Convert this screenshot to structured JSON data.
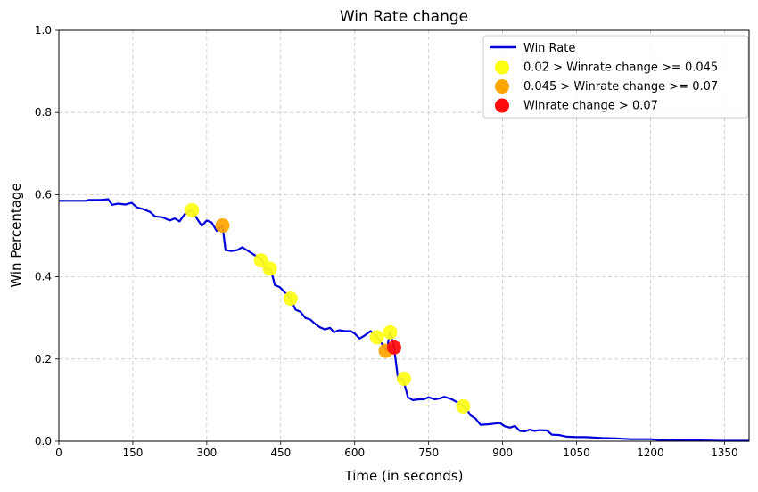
{
  "chart_data": {
    "type": "line",
    "title": "Win Rate change",
    "xlabel": "Time (in seconds)",
    "ylabel": "Win Percentage",
    "xlim": [
      0,
      1400
    ],
    "ylim": [
      0,
      1.0
    ],
    "grid": true,
    "legend_position": "top-right",
    "x_ticks": [
      0,
      150,
      300,
      450,
      600,
      750,
      900,
      1050,
      1200,
      1350
    ],
    "y_ticks": [
      0.0,
      0.2,
      0.4,
      0.6,
      0.8,
      1.0
    ],
    "y_tick_labels": [
      "0.0",
      "0.2",
      "0.4",
      "0.6",
      "0.8",
      "1.0"
    ],
    "series": [
      {
        "name": "Win Rate",
        "color": "#0000dd",
        "points": [
          [
            0,
            0.585
          ],
          [
            20,
            0.585
          ],
          [
            40,
            0.585
          ],
          [
            55,
            0.585
          ],
          [
            60,
            0.587
          ],
          [
            70,
            0.587
          ],
          [
            85,
            0.587
          ],
          [
            100,
            0.589
          ],
          [
            108,
            0.575
          ],
          [
            120,
            0.578
          ],
          [
            135,
            0.576
          ],
          [
            148,
            0.58
          ],
          [
            158,
            0.569
          ],
          [
            170,
            0.565
          ],
          [
            185,
            0.558
          ],
          [
            195,
            0.547
          ],
          [
            210,
            0.545
          ],
          [
            225,
            0.537
          ],
          [
            235,
            0.542
          ],
          [
            245,
            0.535
          ],
          [
            255,
            0.552
          ],
          [
            270,
            0.563
          ],
          [
            280,
            0.542
          ],
          [
            290,
            0.524
          ],
          [
            300,
            0.537
          ],
          [
            310,
            0.532
          ],
          [
            320,
            0.512
          ],
          [
            332,
            0.525
          ],
          [
            338,
            0.465
          ],
          [
            350,
            0.463
          ],
          [
            362,
            0.465
          ],
          [
            372,
            0.472
          ],
          [
            385,
            0.462
          ],
          [
            398,
            0.452
          ],
          [
            410,
            0.443
          ],
          [
            420,
            0.418
          ],
          [
            430,
            0.418
          ],
          [
            438,
            0.38
          ],
          [
            448,
            0.375
          ],
          [
            460,
            0.36
          ],
          [
            470,
            0.347
          ],
          [
            480,
            0.32
          ],
          [
            490,
            0.315
          ],
          [
            500,
            0.3
          ],
          [
            510,
            0.296
          ],
          [
            520,
            0.285
          ],
          [
            530,
            0.277
          ],
          [
            540,
            0.272
          ],
          [
            550,
            0.276
          ],
          [
            558,
            0.265
          ],
          [
            568,
            0.27
          ],
          [
            580,
            0.268
          ],
          [
            592,
            0.268
          ],
          [
            600,
            0.262
          ],
          [
            610,
            0.25
          ],
          [
            620,
            0.257
          ],
          [
            632,
            0.268
          ],
          [
            645,
            0.254
          ],
          [
            655,
            0.238
          ],
          [
            665,
            0.22
          ],
          [
            672,
            0.268
          ],
          [
            680,
            0.228
          ],
          [
            688,
            0.15
          ],
          [
            698,
            0.152
          ],
          [
            708,
            0.107
          ],
          [
            718,
            0.1
          ],
          [
            730,
            0.102
          ],
          [
            740,
            0.102
          ],
          [
            750,
            0.107
          ],
          [
            762,
            0.102
          ],
          [
            772,
            0.104
          ],
          [
            782,
            0.108
          ],
          [
            795,
            0.103
          ],
          [
            805,
            0.097
          ],
          [
            815,
            0.09
          ],
          [
            825,
            0.082
          ],
          [
            835,
            0.063
          ],
          [
            845,
            0.055
          ],
          [
            855,
            0.04
          ],
          [
            870,
            0.041
          ],
          [
            885,
            0.043
          ],
          [
            895,
            0.044
          ],
          [
            905,
            0.036
          ],
          [
            915,
            0.033
          ],
          [
            925,
            0.037
          ],
          [
            935,
            0.025
          ],
          [
            945,
            0.024
          ],
          [
            955,
            0.028
          ],
          [
            965,
            0.025
          ],
          [
            975,
            0.027
          ],
          [
            990,
            0.026
          ],
          [
            1000,
            0.016
          ],
          [
            1015,
            0.015
          ],
          [
            1030,
            0.011
          ],
          [
            1050,
            0.01
          ],
          [
            1070,
            0.01
          ],
          [
            1100,
            0.008
          ],
          [
            1130,
            0.007
          ],
          [
            1160,
            0.005
          ],
          [
            1200,
            0.005
          ],
          [
            1220,
            0.003
          ],
          [
            1260,
            0.002
          ],
          [
            1300,
            0.002
          ],
          [
            1340,
            0.001
          ],
          [
            1380,
            0.001
          ],
          [
            1400,
            0.001
          ]
        ]
      },
      {
        "name": " 0.02 > Winrate change >= 0.045",
        "color": "#ffff14",
        "points": [
          [
            270,
            0.562
          ],
          [
            410,
            0.44
          ],
          [
            428,
            0.42
          ],
          [
            470,
            0.347
          ],
          [
            645,
            0.253
          ],
          [
            672,
            0.265
          ],
          [
            700,
            0.152
          ],
          [
            820,
            0.085
          ]
        ]
      },
      {
        "name": "0.045 > Winrate change >= 0.07",
        "color": "#ffa500",
        "points": [
          [
            332,
            0.525
          ],
          [
            663,
            0.22
          ]
        ]
      },
      {
        "name": "Winrate change > 0.07",
        "color": "#ff0a0a",
        "points": [
          [
            680,
            0.228
          ]
        ]
      }
    ]
  }
}
